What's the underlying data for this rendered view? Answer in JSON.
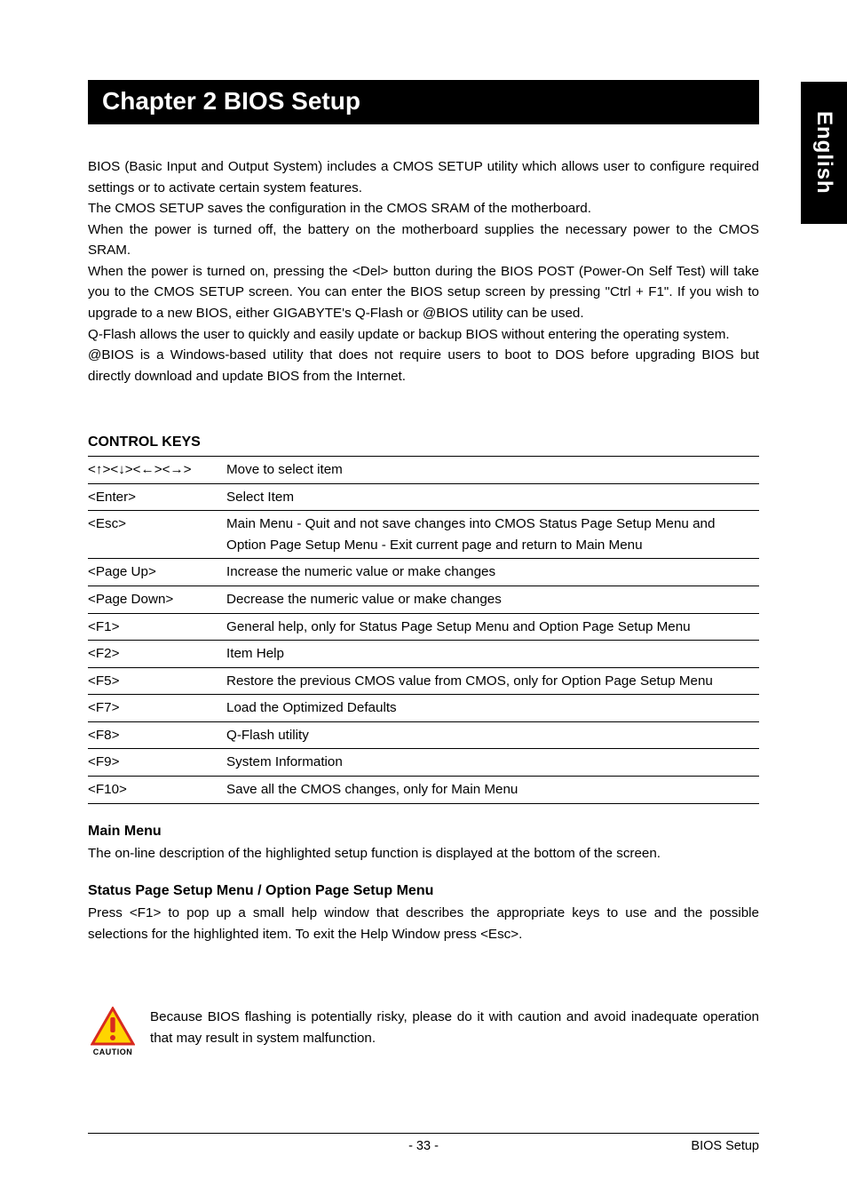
{
  "sideTab": "English",
  "chapter": {
    "title": "Chapter 2  BIOS Setup"
  },
  "intro": {
    "p1": "BIOS (Basic Input and Output System) includes a CMOS SETUP utility which allows user to configure required settings or to activate certain system features.",
    "p2": "The CMOS SETUP saves the configuration in the CMOS SRAM of the motherboard.",
    "p3": "When the power is turned off, the battery on the motherboard supplies the necessary power to the CMOS SRAM.",
    "p4": "When the power is turned on, pressing the <Del> button during the BIOS POST (Power-On Self Test) will take you to the CMOS SETUP screen. You can enter the BIOS setup screen by pressing \"Ctrl + F1\". If you wish to upgrade to a new BIOS, either GIGABYTE's Q-Flash or @BIOS utility can be used.",
    "p5": "Q-Flash allows the user to quickly and easily update or backup BIOS without entering the operating system.",
    "p6": "@BIOS is a Windows-based utility that does not require users to boot to DOS before upgrading BIOS but directly download and update BIOS from the Internet."
  },
  "controlKeys": {
    "heading": "CONTROL KEYS",
    "rows": [
      {
        "key": "<↑><↓><←><→>",
        "desc": "Move to select item"
      },
      {
        "key": "<Enter>",
        "desc": "Select Item"
      },
      {
        "key": "<Esc>",
        "desc": "Main Menu - Quit and not save changes into CMOS Status Page Setup Menu and Option Page Setup Menu - Exit current page and return to Main Menu"
      },
      {
        "key": "<Page Up>",
        "desc": "Increase the numeric value or make changes"
      },
      {
        "key": "<Page Down>",
        "desc": "Decrease the numeric value or make changes"
      },
      {
        "key": "<F1>",
        "desc": "General help, only for Status Page Setup Menu and Option Page Setup Menu"
      },
      {
        "key": "<F2>",
        "desc": "Item Help"
      },
      {
        "key": "<F5>",
        "desc": "Restore the previous CMOS value from CMOS, only for Option Page Setup Menu"
      },
      {
        "key": "<F7>",
        "desc": "Load the Optimized Defaults"
      },
      {
        "key": "<F8>",
        "desc": "Q-Flash utility"
      },
      {
        "key": "<F9>",
        "desc": "System Information"
      },
      {
        "key": "<F10>",
        "desc": "Save all the CMOS changes, only for Main Menu"
      }
    ]
  },
  "mainMenu": {
    "heading": "Main Menu",
    "text": "The on-line description of the highlighted setup function is displayed at the bottom of the screen."
  },
  "statusMenu": {
    "heading": "Status Page Setup Menu / Option Page Setup Menu",
    "text": "Press <F1> to pop up a small help window that describes the appropriate keys to use and the possible selections for the highlighted item. To exit the Help Window press <Esc>."
  },
  "caution": {
    "label": "CAUTION",
    "text": "Because BIOS flashing is potentially risky, please do it with caution and avoid inadequate operation that may result in system malfunction.",
    "icon": {
      "borderColor": "#d82a1f",
      "fillColor": "#ffd400",
      "bangColor": "#d82a1f"
    }
  },
  "footer": {
    "pageNum": "- 33 -",
    "section": "BIOS Setup"
  }
}
